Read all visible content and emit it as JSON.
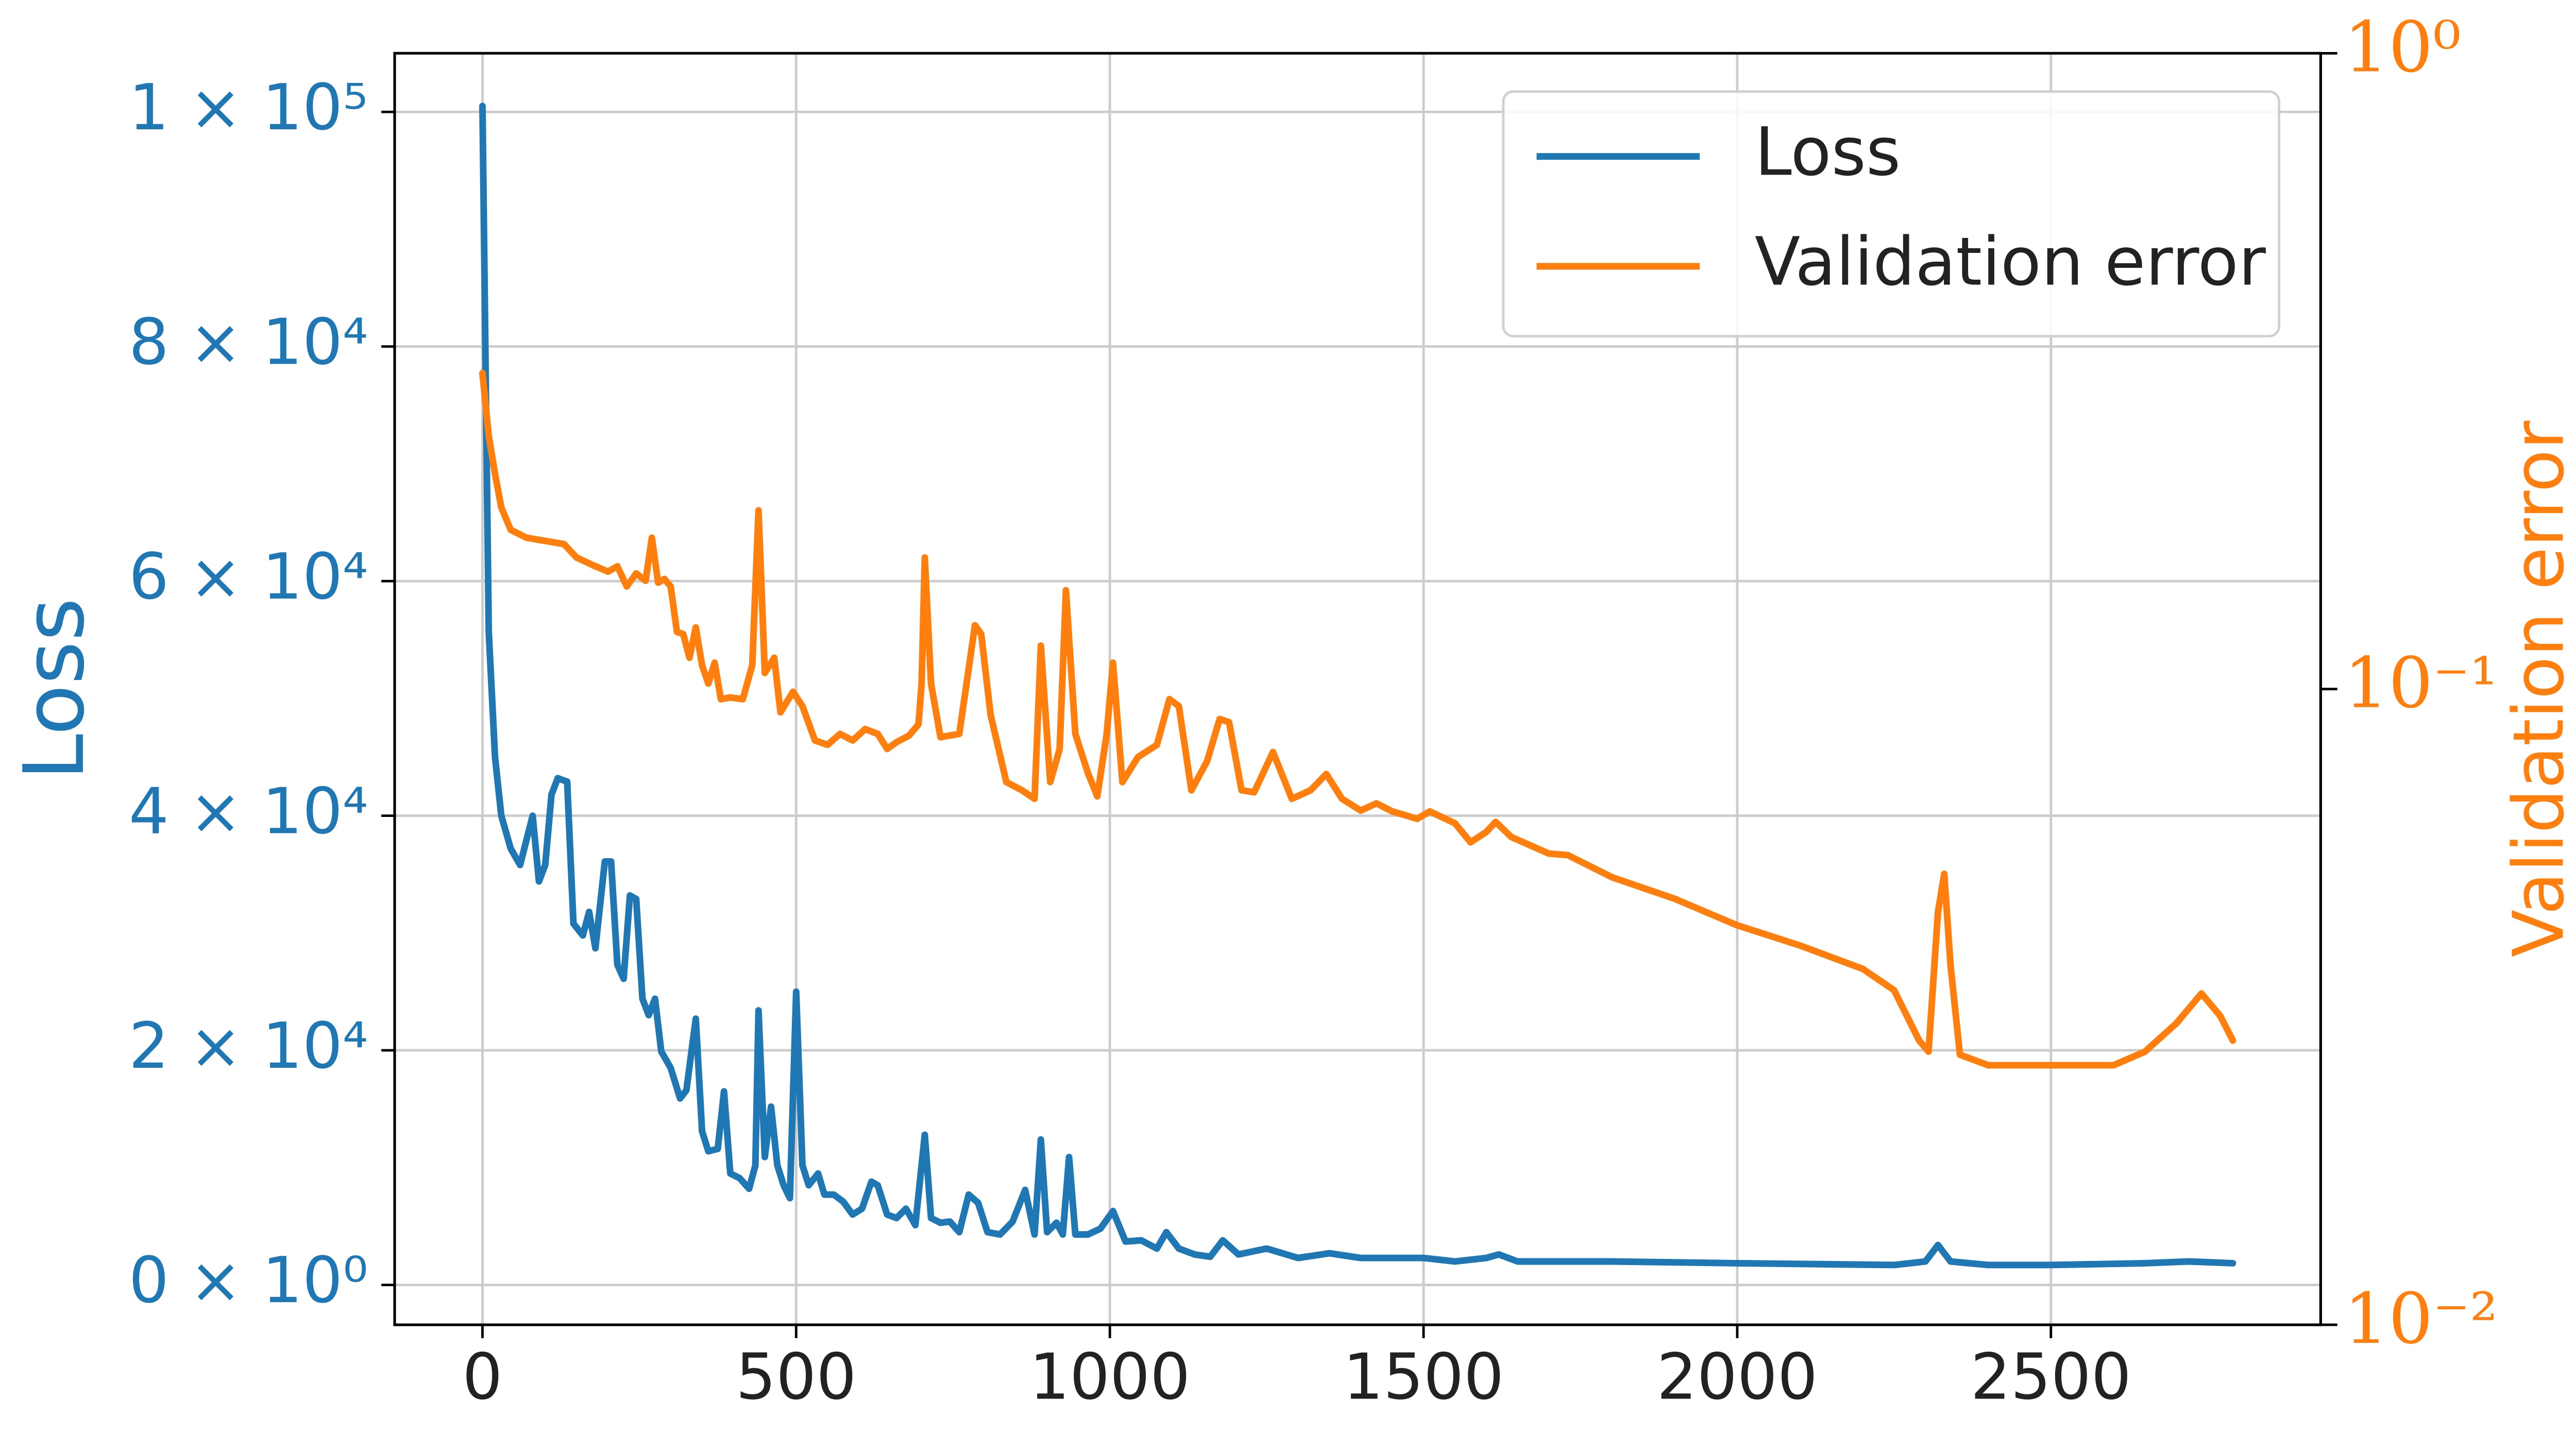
{
  "chart_data": {
    "type": "line",
    "ylabel": "Loss",
    "y2label": "Validation error",
    "xlim": [
      -140,
      2930
    ],
    "xticks": [
      0,
      500,
      1000,
      1500,
      2000,
      2500
    ],
    "ylim": [
      -3400,
      105000
    ],
    "yticks": [
      {
        "value": 0,
        "label": "0 × 10⁰"
      },
      {
        "value": 20000,
        "label": "2 × 10⁴"
      },
      {
        "value": 40000,
        "label": "4 × 10⁴"
      },
      {
        "value": 60000,
        "label": "6 × 10⁴"
      },
      {
        "value": 80000,
        "label": "8 × 10⁴"
      },
      {
        "value": 100000,
        "label": "1 × 10⁵"
      }
    ],
    "y2lim": [
      0.01,
      1
    ],
    "y2scale": "log",
    "y2ticks": [
      {
        "value": 0.01,
        "label": "10⁻²"
      },
      {
        "value": 0.1,
        "label": "10⁻¹"
      },
      {
        "value": 1,
        "label": "10⁰"
      }
    ],
    "grid": true,
    "legend": "upper right",
    "series": [
      {
        "name": "Loss",
        "color": "#1f77b4",
        "x": [
          0,
          10,
          20,
          30,
          45,
          60,
          80,
          90,
          100,
          110,
          120,
          135,
          145,
          160,
          170,
          180,
          195,
          205,
          215,
          225,
          235,
          245,
          255,
          265,
          275,
          285,
          300,
          315,
          325,
          340,
          350,
          360,
          375,
          385,
          395,
          410,
          425,
          435,
          440,
          450,
          460,
          470,
          480,
          490,
          500,
          510,
          520,
          535,
          545,
          560,
          575,
          590,
          605,
          620,
          630,
          645,
          660,
          675,
          690,
          705,
          715,
          730,
          745,
          760,
          775,
          790,
          805,
          825,
          845,
          865,
          880,
          890,
          900,
          915,
          925,
          935,
          945,
          965,
          985,
          1005,
          1025,
          1050,
          1075,
          1090,
          1110,
          1135,
          1160,
          1180,
          1205,
          1250,
          1300,
          1350,
          1400,
          1500,
          1550,
          1600,
          1620,
          1650,
          1800,
          2000,
          2250,
          2300,
          2320,
          2340,
          2400,
          2500,
          2650,
          2720,
          2790
        ],
        "values": [
          100500,
          55700,
          45000,
          40000,
          37200,
          35800,
          40000,
          34400,
          35800,
          41800,
          43200,
          42900,
          30800,
          29800,
          31800,
          28700,
          36100,
          36100,
          27300,
          26100,
          33200,
          32900,
          24400,
          23000,
          24400,
          19900,
          18500,
          15900,
          16600,
          22700,
          13100,
          11400,
          11600,
          16500,
          9500,
          9100,
          8200,
          10200,
          23400,
          10900,
          15200,
          10200,
          8500,
          7400,
          25000,
          10200,
          8500,
          9500,
          7700,
          7700,
          7100,
          6000,
          6500,
          8800,
          8500,
          6000,
          5700,
          6500,
          5100,
          12800,
          5700,
          5300,
          5400,
          4500,
          7700,
          7000,
          4500,
          4300,
          5400,
          8100,
          4300,
          12400,
          4500,
          5300,
          4300,
          10900,
          4300,
          4300,
          4800,
          6300,
          3700,
          3800,
          3100,
          4500,
          3100,
          2600,
          2400,
          3800,
          2600,
          3100,
          2300,
          2700,
          2300,
          2300,
          2000,
          2300,
          2600,
          2000,
          2000,
          1850,
          1700,
          2000,
          3400,
          2000,
          1700,
          1700,
          1850,
          2000,
          1850
        ]
      },
      {
        "name": "Validation error",
        "color": "#ff7f0e",
        "axis": "y2",
        "x": [
          0,
          10,
          20,
          30,
          45,
          70,
          100,
          130,
          150,
          180,
          200,
          215,
          230,
          245,
          260,
          270,
          280,
          290,
          300,
          310,
          320,
          330,
          340,
          350,
          360,
          370,
          380,
          395,
          415,
          430,
          440,
          450,
          465,
          475,
          495,
          510,
          530,
          550,
          570,
          590,
          610,
          630,
          645,
          660,
          680,
          695,
          700,
          705,
          715,
          730,
          760,
          785,
          795,
          810,
          835,
          860,
          880,
          890,
          905,
          920,
          930,
          945,
          965,
          980,
          995,
          1005,
          1020,
          1045,
          1075,
          1095,
          1110,
          1130,
          1155,
          1175,
          1190,
          1210,
          1230,
          1260,
          1290,
          1320,
          1345,
          1370,
          1400,
          1425,
          1450,
          1490,
          1510,
          1550,
          1575,
          1600,
          1615,
          1640,
          1700,
          1730,
          1800,
          1900,
          2000,
          2100,
          2200,
          2250,
          2290,
          2305,
          2320,
          2330,
          2340,
          2355,
          2400,
          2500,
          2600,
          2650,
          2700,
          2740,
          2770,
          2790
        ],
        "values": [
          0.314,
          0.25,
          0.218,
          0.193,
          0.178,
          0.173,
          0.171,
          0.169,
          0.161,
          0.156,
          0.153,
          0.156,
          0.145,
          0.152,
          0.148,
          0.173,
          0.147,
          0.149,
          0.145,
          0.123,
          0.122,
          0.112,
          0.125,
          0.109,
          0.102,
          0.11,
          0.0964,
          0.097,
          0.0964,
          0.109,
          0.191,
          0.106,
          0.112,
          0.0919,
          0.099,
          0.094,
          0.083,
          0.0817,
          0.085,
          0.083,
          0.0865,
          0.085,
          0.0805,
          0.0825,
          0.0845,
          0.088,
          0.102,
          0.161,
          0.102,
          0.084,
          0.085,
          0.126,
          0.122,
          0.091,
          0.0714,
          0.0693,
          0.0672,
          0.117,
          0.0714,
          0.0805,
          0.143,
          0.085,
          0.0738,
          0.0678,
          0.085,
          0.11,
          0.0714,
          0.0782,
          0.0817,
          0.0964,
          0.094,
          0.0693,
          0.077,
          0.0897,
          0.0887,
          0.0693,
          0.0688,
          0.0796,
          0.0672,
          0.0693,
          0.0735,
          0.0672,
          0.0644,
          0.0661,
          0.0642,
          0.0625,
          0.0642,
          0.0615,
          0.0574,
          0.0596,
          0.0618,
          0.0585,
          0.0551,
          0.0548,
          0.0506,
          0.0468,
          0.0425,
          0.0395,
          0.0363,
          0.0336,
          0.028,
          0.0269,
          0.0446,
          0.0512,
          0.0368,
          0.0266,
          0.0256,
          0.0256,
          0.0256,
          0.0269,
          0.0298,
          0.0332,
          0.0306,
          0.028
        ]
      }
    ]
  }
}
